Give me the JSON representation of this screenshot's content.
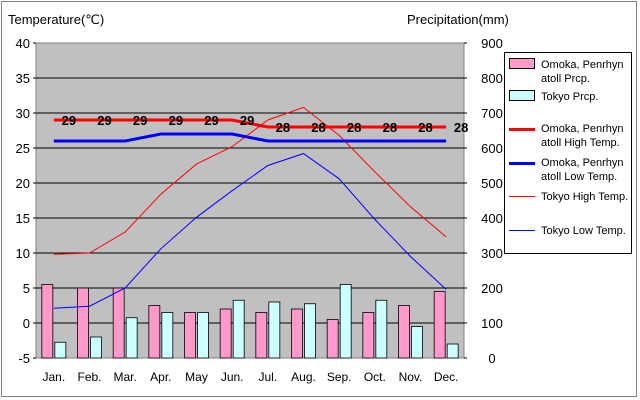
{
  "chart_data": {
    "type": "bar+line",
    "categories": [
      "Jan.",
      "Feb.",
      "Mar.",
      "Apr.",
      "May",
      "Jun.",
      "Jul.",
      "Aug.",
      "Sep.",
      "Oct.",
      "Nov.",
      "Dec."
    ],
    "y_left": {
      "label": "Temperature(℃)",
      "lim": [
        -5,
        40
      ],
      "ticks": [
        -5,
        0,
        5,
        10,
        15,
        20,
        25,
        30,
        35,
        40
      ]
    },
    "y_right": {
      "label": "Precipitation(mm)",
      "lim": [
        0,
        900
      ],
      "ticks": [
        0,
        100,
        200,
        300,
        400,
        500,
        600,
        700,
        800,
        900
      ]
    },
    "grid": true,
    "legend_position": "right",
    "bar_series": [
      {
        "name": "Omoka, Penrhyn atoll Prcp.",
        "color": "#ff99cc",
        "axis": "right",
        "values": [
          210,
          200,
          200,
          150,
          130,
          140,
          130,
          140,
          110,
          130,
          150,
          190
        ]
      },
      {
        "name": "Tokyo Prcp.",
        "color": "#ccffff",
        "axis": "right",
        "values": [
          45,
          60,
          115,
          130,
          130,
          165,
          160,
          155,
          210,
          165,
          90,
          40
        ]
      }
    ],
    "line_series": [
      {
        "name": "Omoka, Penrhyn atoll High Temp.",
        "color": "#ff0000",
        "width": 3,
        "axis": "left",
        "values": [
          29,
          29,
          29,
          29,
          29,
          29,
          28,
          28,
          28,
          28,
          28,
          28
        ],
        "labels": true
      },
      {
        "name": "Omoka, Penrhyn atoll Low Temp.",
        "color": "#0000ff",
        "width": 3,
        "axis": "left",
        "values": [
          26,
          26,
          26,
          27,
          27,
          27,
          26,
          26,
          26,
          26,
          26,
          26
        ]
      },
      {
        "name": "Tokyo High Temp.",
        "color": "#ff0000",
        "width": 1,
        "axis": "left",
        "values": [
          9.8,
          10,
          13,
          18.4,
          22.7,
          25.2,
          29,
          30.8,
          26.8,
          21.6,
          16.6,
          12.3
        ]
      },
      {
        "name": "Tokyo Low Temp.",
        "color": "#0000ff",
        "width": 1,
        "axis": "left",
        "values": [
          2.1,
          2.4,
          5,
          10.6,
          15.1,
          18.9,
          22.5,
          24.2,
          20.6,
          14.8,
          9.5,
          4.8
        ]
      }
    ]
  }
}
